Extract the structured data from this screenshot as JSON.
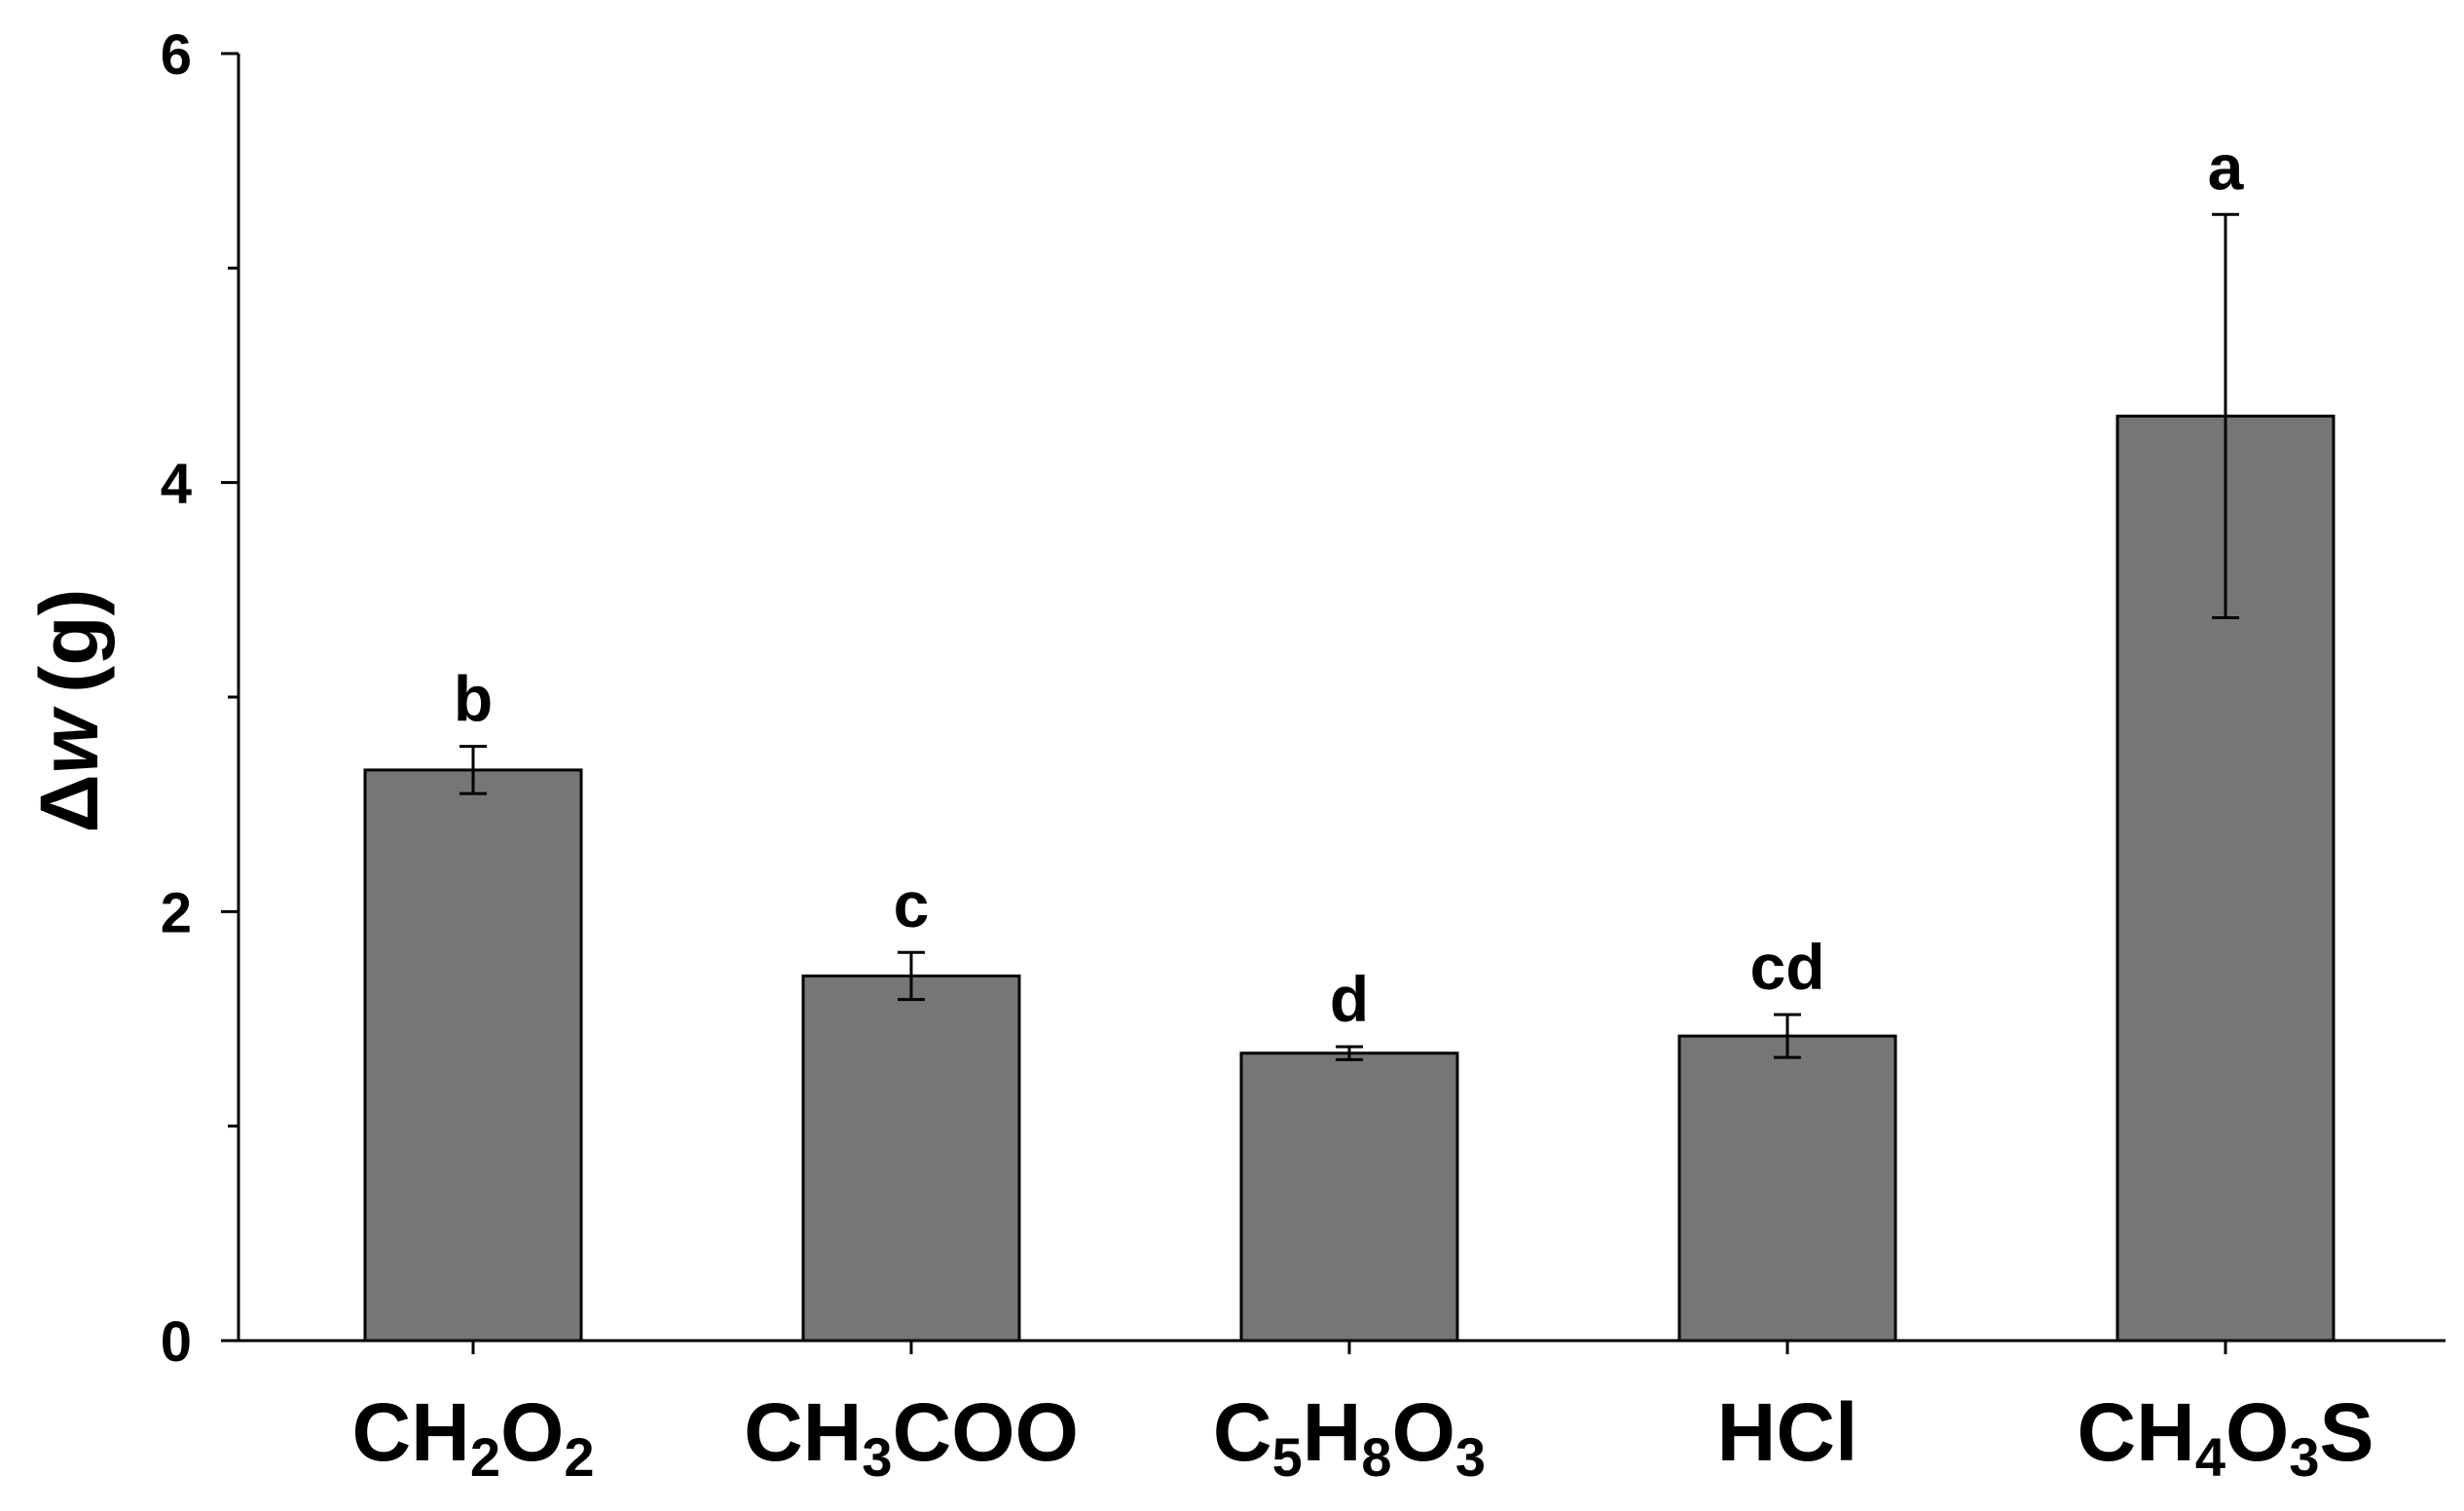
{
  "chart_data": {
    "type": "bar",
    "title": "",
    "xlabel": "",
    "ylabel": {
      "symbol": "Δ",
      "variable": "w",
      "unit": "(g)"
    },
    "ylim": [
      0,
      6
    ],
    "yticks": [
      0,
      2,
      4,
      6
    ],
    "yminor_ticks": [
      1,
      3,
      5
    ],
    "categories": [
      {
        "parts": [
          {
            "t": "CH"
          },
          {
            "t": "2",
            "sub": true
          },
          {
            "t": "O"
          },
          {
            "t": "2",
            "sub": true
          }
        ]
      },
      {
        "parts": [
          {
            "t": "CH"
          },
          {
            "t": "3",
            "sub": true
          },
          {
            "t": "COO"
          }
        ]
      },
      {
        "parts": [
          {
            "t": "C"
          },
          {
            "t": "5",
            "sub": true
          },
          {
            "t": "H"
          },
          {
            "t": "8",
            "sub": true
          },
          {
            "t": "O"
          },
          {
            "t": "3",
            "sub": true
          }
        ]
      },
      {
        "parts": [
          {
            "t": "HCl"
          }
        ]
      },
      {
        "parts": [
          {
            "t": "CH"
          },
          {
            "t": "4",
            "sub": true
          },
          {
            "t": "O"
          },
          {
            "t": "3",
            "sub": true
          },
          {
            "t": "S"
          }
        ]
      }
    ],
    "values": [
      2.66,
      1.7,
      1.34,
      1.42,
      4.31
    ],
    "errors": [
      0.11,
      0.11,
      0.03,
      0.1,
      0.94
    ],
    "significance": [
      "b",
      "c",
      "d",
      "cd",
      "a"
    ],
    "bar_color": "#767676",
    "grid": false
  }
}
